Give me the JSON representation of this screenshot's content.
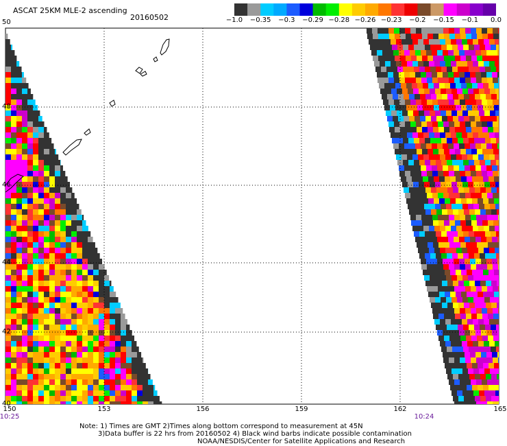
{
  "header": {
    "title": "ASCAT 25KM MLE-2 ascending",
    "date": "20160502"
  },
  "colorbar": {
    "labels": [
      "−1.0",
      "−0.35",
      "−0.3",
      "−0.29",
      "−0.28",
      "−0.26",
      "−0.23",
      "−0.2",
      "−0.15",
      "−0.1",
      "0.0"
    ],
    "colors": [
      "#333333",
      "#9a9a9a",
      "#00ccff",
      "#00aaff",
      "#1c5cff",
      "#0000dd",
      "#00bb00",
      "#00ee00",
      "#ffff00",
      "#ffcc00",
      "#ffaa00",
      "#ff7700",
      "#ff3333",
      "#ee0000",
      "#7a4a2a",
      "#cc9966",
      "#ff00ff",
      "#cc00cc",
      "#8800cc",
      "#6600aa"
    ]
  },
  "axes": {
    "lat_ticks": [
      "50",
      "48",
      "46",
      "44",
      "42",
      "40"
    ],
    "lon_ticks": [
      "150",
      "153",
      "156",
      "159",
      "162",
      "165"
    ]
  },
  "times": {
    "left": "10:25",
    "right": "10:24"
  },
  "notes": {
    "line1": "Note: 1) Times are GMT 2)Times along bottom correspond to measurement at 45N",
    "line2": "3)Data buffer is 22 hrs from 20160502 4) Black wind barbs indicate possible contamination",
    "line3": "NOAA/NESDIS/Center for Satellite Applications and Research"
  }
}
